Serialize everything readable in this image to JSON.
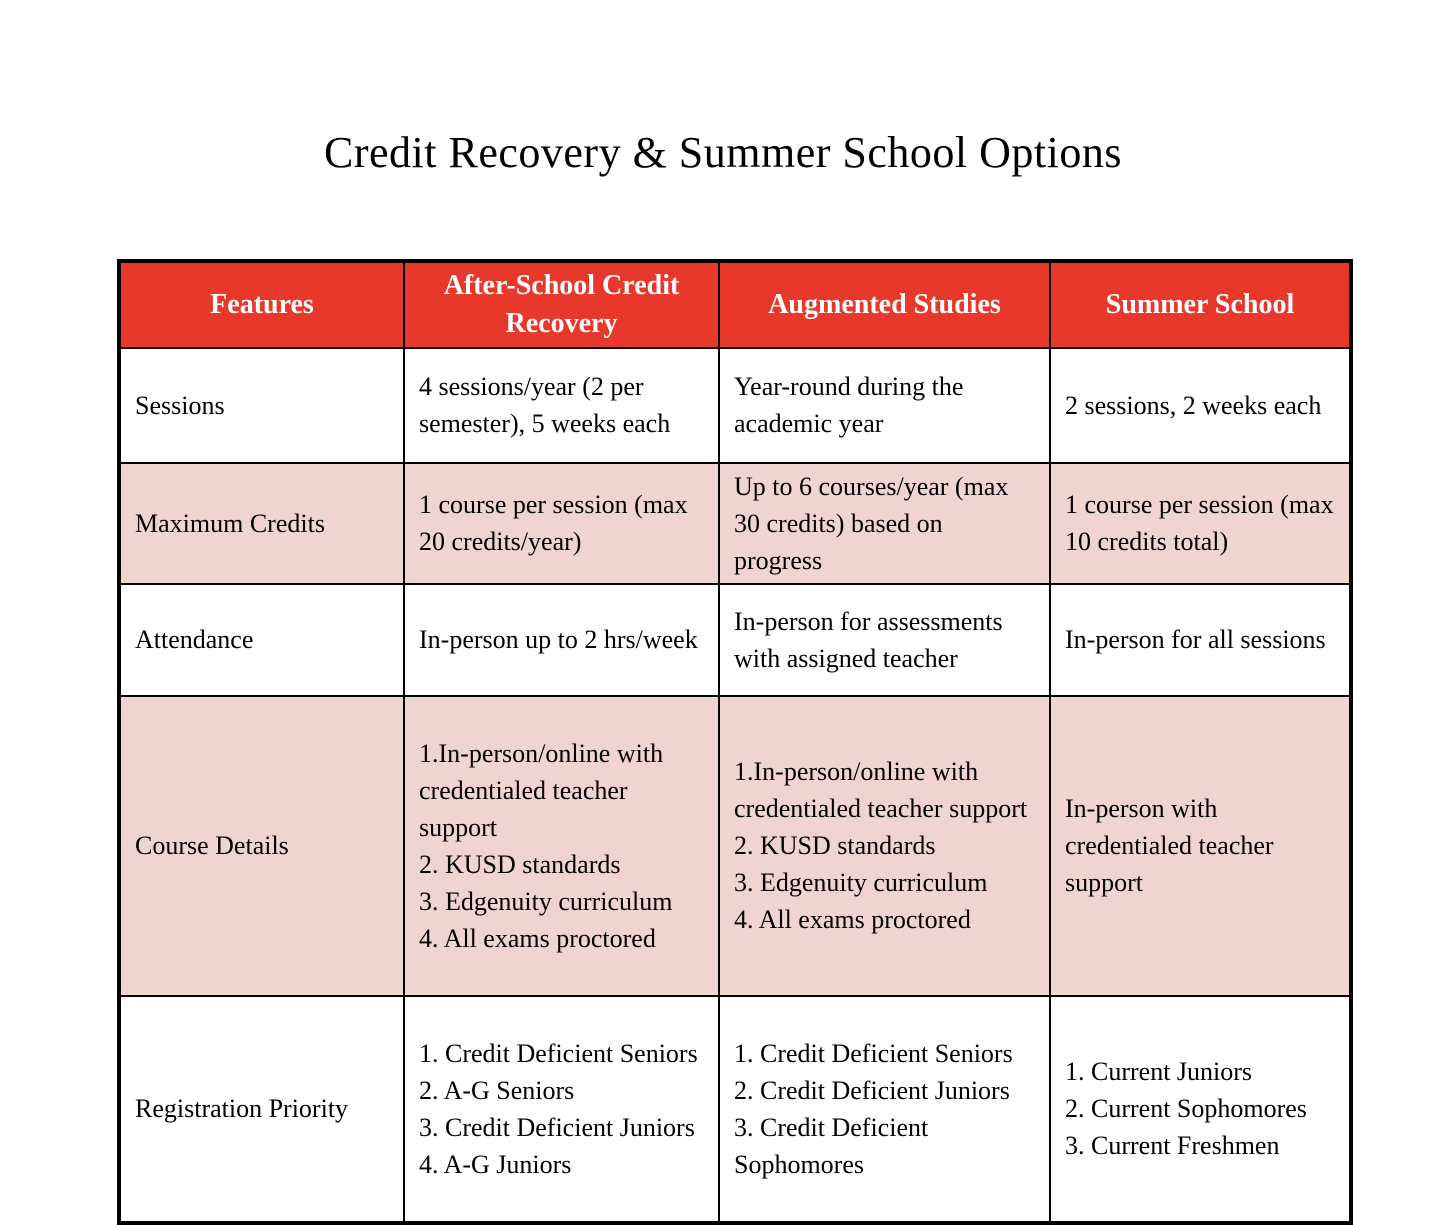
{
  "title": "Credit Recovery & Summer School Options",
  "colors": {
    "header_bg": "#e7382b",
    "header_text": "#ffffff",
    "shaded_row_bg": "#f0d4d0",
    "plain_row_bg": "#ffffff",
    "border": "#000000",
    "text": "#000000"
  },
  "table": {
    "columns": [
      "Features",
      "After-School Credit Recovery",
      "Augmented Studies",
      "Summer School"
    ],
    "rows": [
      {
        "feature": "Sessions",
        "cells": [
          "4 sessions/year (2 per semester), 5 weeks each",
          "Year-round during the academic year",
          "2 sessions, 2 weeks each"
        ]
      },
      {
        "feature": "Maximum Credits",
        "cells": [
          "1 course per session (max 20 credits/year)",
          "Up to 6 courses/year (max 30 credits) based on progress",
          "1 course per session (max 10 credits total)"
        ]
      },
      {
        "feature": "Attendance",
        "cells": [
          "In-person up to 2 hrs/week",
          "In-person for assessments with assigned teacher",
          "In-person for all sessions"
        ]
      },
      {
        "feature": "Course Details",
        "cells": [
          "1.In-person/online with credentialed teacher support\n2. KUSD standards\n3. Edgenuity curriculum\n4. All exams proctored",
          "1.In-person/online with credentialed teacher support\n2. KUSD standards\n3. Edgenuity curriculum\n4. All exams proctored",
          "In-person with credentialed teacher support"
        ]
      },
      {
        "feature": "Registration Priority",
        "cells": [
          "1. Credit Deficient Seniors\n2. A-G Seniors\n3. Credit Deficient Juniors\n4. A-G Juniors",
          "1. Credit Deficient Seniors\n2. Credit Deficient Juniors\n3. Credit Deficient Sophomores",
          "1. Current Juniors\n2. Current Sophomores\n3. Current Freshmen"
        ]
      }
    ]
  }
}
